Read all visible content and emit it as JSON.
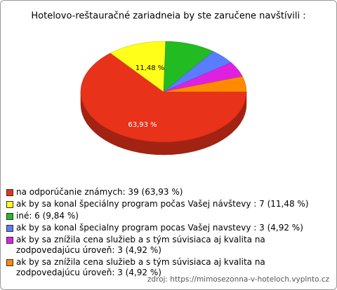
{
  "chart_data": {
    "type": "pie3d",
    "title": "Hotelovo-reštauračné zariadneia by ste zaručene navštívili :",
    "categories": [
      "na odporúčanie známych: 39 (63,93 %)",
      "ak by sa konal špeciálny program počas Vašej návštevy : 7 (11,48 %)",
      "iné: 6 (9,84 %)",
      "ak by sa konal špecialny program pocas Vašej navstevy : 3 (4,92 %)",
      "ak by sa znížila cena služieb a s tým súvisiaca aj kvalita na zodpovedajúcu úroveň: 3 (4,92 %)",
      "ak by sa znížila cena služieb a s tým súvisiaca aj kvalita na zodpovedajúcu úroveň: 3 (4,92 %)"
    ],
    "values": [
      63.93,
      11.48,
      9.84,
      4.92,
      4.92,
      4.92
    ],
    "value_labels": [
      "63,93 %",
      "11,48 %",
      null,
      null,
      null,
      null
    ],
    "colors": [
      "#e8321a",
      "#ffff1a",
      "#22bb22",
      "#5a7cff",
      "#e020e0",
      "#ff8a00"
    ],
    "source": "zdroj: https://mimosezonna-v-hoteloch.vyplnto.cz"
  }
}
